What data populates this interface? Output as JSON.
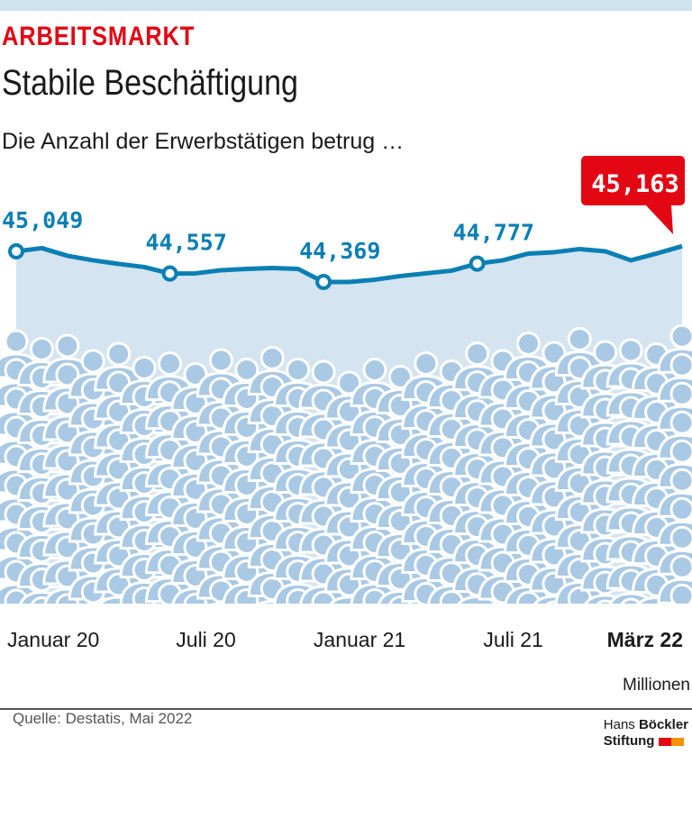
{
  "header": {
    "kicker": "ARBEITSMARKT",
    "title": "Stabile Beschäftigung",
    "subtitle": "Die Anzahl der Erwerbstätigen betrug …"
  },
  "chart_data": {
    "type": "area",
    "unit": "Millionen",
    "x": [
      "2020-01",
      "2020-02",
      "2020-03",
      "2020-04",
      "2020-05",
      "2020-06",
      "2020-07",
      "2020-08",
      "2020-09",
      "2020-10",
      "2020-11",
      "2020-12",
      "2021-01",
      "2021-02",
      "2021-03",
      "2021-04",
      "2021-05",
      "2021-06",
      "2021-07",
      "2021-08",
      "2021-09",
      "2021-10",
      "2021-11",
      "2021-12",
      "2022-01",
      "2022-02",
      "2022-03"
    ],
    "values": [
      45.049,
      45.12,
      44.95,
      44.85,
      44.77,
      44.7,
      44.557,
      44.56,
      44.63,
      44.66,
      44.68,
      44.66,
      44.369,
      44.37,
      44.42,
      44.5,
      44.56,
      44.62,
      44.777,
      44.85,
      45.0,
      45.03,
      45.1,
      45.05,
      44.85,
      45.0,
      45.163
    ],
    "labels": [
      {
        "index": 0,
        "text": "45,049"
      },
      {
        "index": 6,
        "text": "44,557"
      },
      {
        "index": 12,
        "text": "44,369"
      },
      {
        "index": 18,
        "text": "44,777"
      }
    ],
    "highlight": {
      "index": 26,
      "text": "45,163"
    },
    "x_ticks": [
      {
        "index": 0,
        "text": "Januar 20"
      },
      {
        "index": 6,
        "text": "Juli 20"
      },
      {
        "index": 12,
        "text": "Januar 21"
      },
      {
        "index": 18,
        "text": "Juli 21"
      },
      {
        "index": 26,
        "text": "März 22",
        "highlight": true
      }
    ],
    "colors": {
      "line": "#0a7fb4",
      "area": "#d5e4f1",
      "people": "#a9c9e4",
      "highlight": "#e30613"
    }
  },
  "footer": {
    "source": "Quelle: Destatis, Mai 2022",
    "logo_line1_a": "Hans ",
    "logo_line1_b": "Böckler",
    "logo_line2": "Stiftung"
  }
}
